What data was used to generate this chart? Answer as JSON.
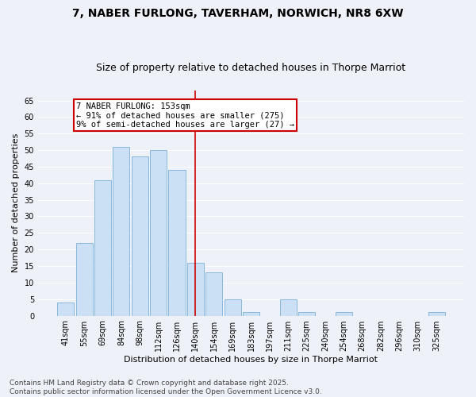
{
  "title1": "7, NABER FURLONG, TAVERHAM, NORWICH, NR8 6XW",
  "title2": "Size of property relative to detached houses in Thorpe Marriot",
  "xlabel": "Distribution of detached houses by size in Thorpe Marriot",
  "ylabel": "Number of detached properties",
  "categories": [
    "41sqm",
    "55sqm",
    "69sqm",
    "84sqm",
    "98sqm",
    "112sqm",
    "126sqm",
    "140sqm",
    "154sqm",
    "169sqm",
    "183sqm",
    "197sqm",
    "211sqm",
    "225sqm",
    "240sqm",
    "254sqm",
    "268sqm",
    "282sqm",
    "296sqm",
    "310sqm",
    "325sqm"
  ],
  "values": [
    4,
    22,
    41,
    51,
    48,
    50,
    44,
    16,
    13,
    5,
    1,
    0,
    5,
    1,
    0,
    1,
    0,
    0,
    0,
    0,
    1
  ],
  "bar_color": "#cce0f5",
  "bar_edge_color": "#7ab0d9",
  "vline_index": 7.5,
  "vline_color": "#cc0000",
  "annotation_text": "7 NABER FURLONG: 153sqm\n← 91% of detached houses are smaller (275)\n9% of semi-detached houses are larger (27) →",
  "annotation_box_color": "#ffffff",
  "annotation_box_edge": "#cc0000",
  "ylim": [
    0,
    68
  ],
  "yticks": [
    0,
    5,
    10,
    15,
    20,
    25,
    30,
    35,
    40,
    45,
    50,
    55,
    60,
    65
  ],
  "footer_text": "Contains HM Land Registry data © Crown copyright and database right 2025.\nContains public sector information licensed under the Open Government Licence v3.0.",
  "background_color": "#eef2f8",
  "grid_color": "#ffffff",
  "title_fontsize": 10,
  "subtitle_fontsize": 9,
  "axis_label_fontsize": 8,
  "tick_fontsize": 7,
  "annotation_fontsize": 7.5,
  "footer_fontsize": 6.5
}
